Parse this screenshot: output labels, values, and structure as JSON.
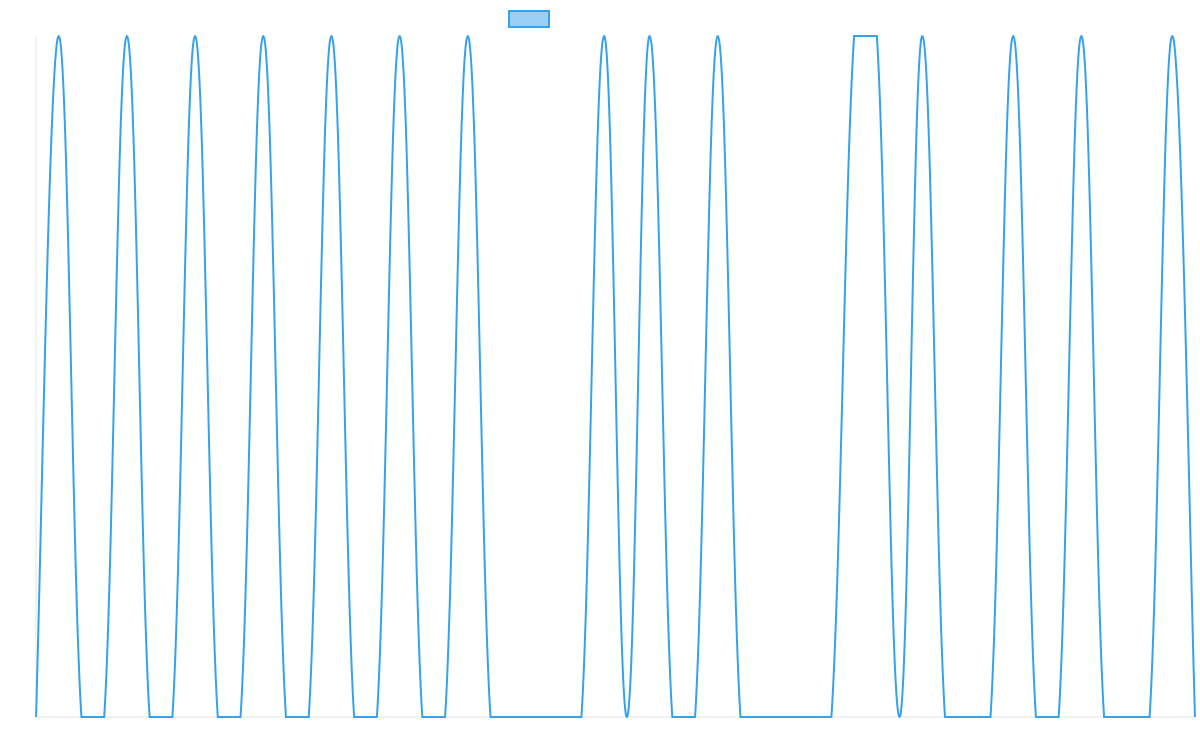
{
  "chart_data": {
    "type": "line",
    "title": "",
    "xlabel": "",
    "ylabel": "",
    "grid": false,
    "legend": "top-center",
    "series": [
      {
        "color": "#36a2eb",
        "values": [
          0,
          1,
          0,
          0,
          1,
          0,
          0,
          1,
          0,
          0,
          1,
          0,
          0,
          1,
          0,
          0,
          1,
          0,
          0,
          1,
          0,
          0,
          0,
          0,
          0,
          1,
          0,
          1,
          0,
          0,
          1,
          0,
          0,
          0,
          0,
          0,
          1,
          1,
          0,
          1,
          0,
          0,
          0,
          1,
          0,
          0,
          1,
          0,
          0,
          0,
          1,
          0
        ]
      }
    ],
    "ylim": [
      0,
      1
    ]
  }
}
